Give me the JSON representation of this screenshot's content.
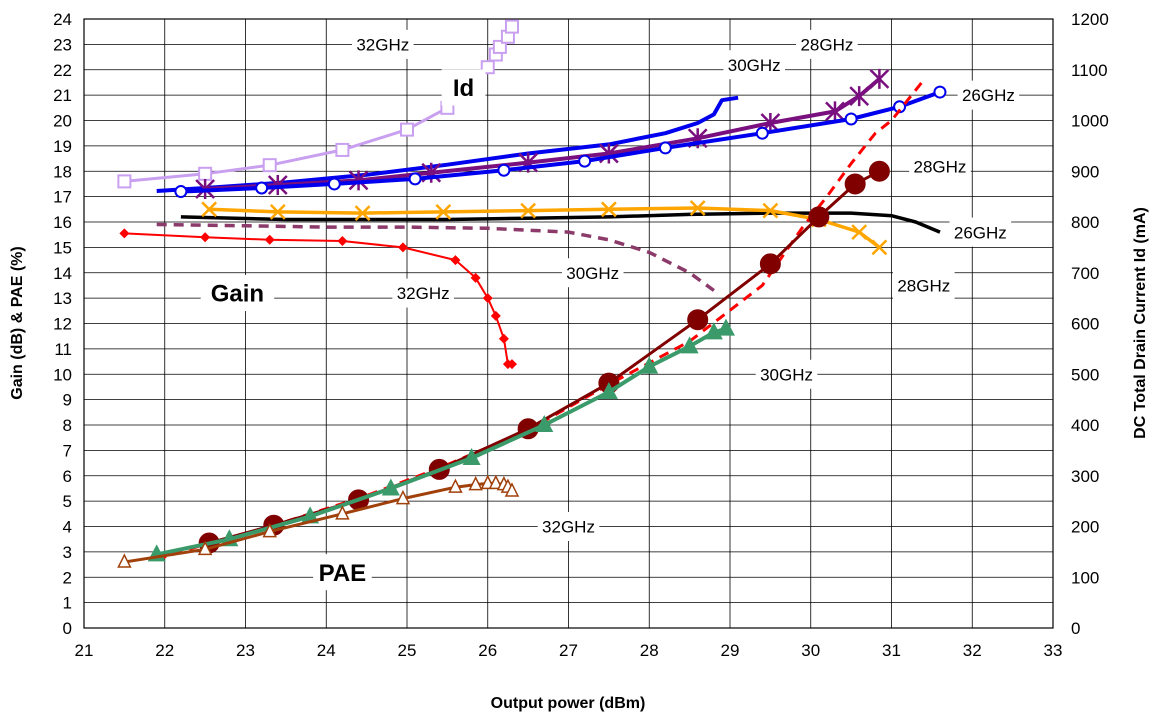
{
  "chart_data": {
    "type": "line",
    "xlabel": "Output power (dBm)",
    "ylabel": "Gain (dB) & PAE (%)",
    "y2label": "DC Total Drain Current Id (mA)",
    "xlim": [
      21,
      33
    ],
    "ylim": [
      0,
      24
    ],
    "y2lim": [
      0,
      1200
    ],
    "x_ticks": [
      21,
      22,
      23,
      24,
      25,
      26,
      27,
      28,
      29,
      30,
      31,
      32,
      33
    ],
    "y_ticks": [
      0,
      1,
      2,
      3,
      4,
      5,
      6,
      7,
      8,
      9,
      10,
      11,
      12,
      13,
      14,
      15,
      16,
      17,
      18,
      19,
      20,
      21,
      22,
      23,
      24
    ],
    "y2_ticks": [
      0,
      100,
      200,
      300,
      400,
      500,
      600,
      700,
      800,
      900,
      1000,
      1100,
      1200
    ],
    "grid": true,
    "annotations": [
      {
        "text": "32GHz",
        "x": 24.7,
        "y": 23.0
      },
      {
        "text": "Id",
        "x": 25.7,
        "y": 21.3,
        "bold": true
      },
      {
        "text": "30GHz",
        "x": 29.3,
        "y": 22.2
      },
      {
        "text": "28GHz",
        "x": 30.2,
        "y": 23.0
      },
      {
        "text": "26GHz",
        "x": 32.2,
        "y": 21.0
      },
      {
        "text": "28GHz",
        "x": 31.6,
        "y": 18.2
      },
      {
        "text": "Gain",
        "x": 22.9,
        "y": 13.2,
        "bold": true
      },
      {
        "text": "32GHz",
        "x": 25.2,
        "y": 13.2
      },
      {
        "text": "30GHz",
        "x": 27.3,
        "y": 14.0
      },
      {
        "text": "26GHz",
        "x": 32.1,
        "y": 15.6
      },
      {
        "text": "28GHz",
        "x": 31.4,
        "y": 13.5
      },
      {
        "text": "30GHz",
        "x": 29.7,
        "y": 10.0
      },
      {
        "text": "32GHz",
        "x": 27.0,
        "y": 4.0
      },
      {
        "text": "PAE",
        "x": 24.2,
        "y": 2.2,
        "bold": true
      }
    ],
    "series": [
      {
        "group": "Id",
        "axis": "right",
        "color": "#c9a0f0",
        "width": 3,
        "marker": "square-open",
        "x": [
          21.5,
          22.5,
          23.3,
          24.2,
          25.0,
          25.5,
          25.8,
          26.0,
          26.1,
          26.15,
          26.25,
          26.3
        ],
        "y": [
          880,
          895,
          912,
          942,
          982,
          1025,
          1065,
          1105,
          1130,
          1145,
          1165,
          1185
        ]
      },
      {
        "group": "Id",
        "axis": "right",
        "color": "#0000ee",
        "width": 4,
        "marker": "none",
        "x": [
          21.9,
          22.5,
          23.5,
          24.5,
          25.5,
          26.5,
          27.5,
          28.2,
          28.6,
          28.8,
          28.9,
          29.1
        ],
        "y": [
          861,
          867,
          878,
          893,
          913,
          935,
          953,
          975,
          995,
          1012,
          1040,
          1045
        ]
      },
      {
        "group": "Id",
        "axis": "right",
        "color": "#7a1080",
        "width": 4,
        "marker": "star",
        "x": [
          22.5,
          23.4,
          24.4,
          25.3,
          26.5,
          27.5,
          28.6,
          29.5,
          30.3,
          30.6,
          30.85
        ],
        "y": [
          865,
          873,
          882,
          897,
          917,
          935,
          965,
          995,
          1018,
          1048,
          1082
        ]
      },
      {
        "group": "Id",
        "axis": "right",
        "color": "#0000ee",
        "width": 4,
        "marker": "circle-open",
        "x": [
          22.2,
          23.2,
          24.1,
          25.1,
          26.2,
          27.2,
          28.2,
          29.4,
          30.5,
          31.1,
          31.6
        ],
        "y": [
          860,
          867,
          875,
          885,
          902,
          920,
          946,
          975,
          1003,
          1027,
          1056
        ]
      },
      {
        "group": "Gain",
        "axis": "left",
        "color": "#000000",
        "width": 3.5,
        "marker": "none",
        "x": [
          22.2,
          23.5,
          24.5,
          25.5,
          26.5,
          27.5,
          28.5,
          29.5,
          30.5,
          31.0,
          31.3,
          31.6
        ],
        "y": [
          16.2,
          16.1,
          16.1,
          16.1,
          16.15,
          16.2,
          16.3,
          16.35,
          16.35,
          16.25,
          16.0,
          15.6
        ]
      },
      {
        "group": "Gain",
        "axis": "left",
        "color": "#ffa500",
        "width": 3.5,
        "marker": "x",
        "x": [
          22.55,
          23.4,
          24.45,
          25.45,
          26.5,
          27.5,
          28.6,
          29.5,
          30.1,
          30.6,
          30.85
        ],
        "y": [
          16.5,
          16.4,
          16.35,
          16.4,
          16.45,
          16.5,
          16.55,
          16.45,
          16.1,
          15.6,
          15.0
        ]
      },
      {
        "group": "Gain",
        "axis": "left",
        "color": "#8b3a6a",
        "width": 3.5,
        "marker": "none",
        "dashed": true,
        "x": [
          21.9,
          23.0,
          24.0,
          25.0,
          26.0,
          27.0,
          27.5,
          28.0,
          28.5,
          28.8
        ],
        "y": [
          15.9,
          15.85,
          15.8,
          15.8,
          15.75,
          15.6,
          15.3,
          14.8,
          14.0,
          13.3
        ]
      },
      {
        "group": "Gain",
        "axis": "left",
        "color": "#ff0000",
        "width": 2,
        "marker": "diamond",
        "x": [
          21.5,
          22.5,
          23.3,
          24.2,
          24.95,
          25.6,
          25.85,
          26.0,
          26.1,
          26.2,
          26.25,
          26.3
        ],
        "y": [
          15.55,
          15.4,
          15.3,
          15.25,
          15.0,
          14.5,
          13.8,
          13.0,
          12.3,
          11.4,
          10.4,
          10.4
        ]
      },
      {
        "group": "PAE",
        "axis": "left",
        "color": "#ff0000",
        "width": 3,
        "marker": "none",
        "dashed": true,
        "x": [
          21.9,
          22.5,
          23.3,
          24.4,
          25.4,
          26.5,
          27.5,
          28.5,
          29.4,
          29.9,
          30.2,
          30.5,
          30.8,
          31.0,
          31.2,
          31.4
        ],
        "y": [
          2.7,
          3.3,
          4.0,
          5.1,
          6.3,
          7.8,
          9.6,
          11.3,
          13.5,
          15.8,
          17.0,
          18.3,
          19.5,
          20.0,
          20.8,
          21.6
        ]
      },
      {
        "group": "PAE",
        "axis": "left",
        "color": "#800000",
        "width": 3,
        "marker": "dot",
        "x": [
          22.55,
          23.35,
          24.4,
          25.4,
          26.5,
          27.5,
          28.6,
          29.5,
          30.1,
          30.55,
          30.85
        ],
        "y": [
          3.35,
          4.05,
          5.05,
          6.25,
          7.85,
          9.65,
          12.15,
          14.35,
          16.2,
          17.5,
          18.0
        ]
      },
      {
        "group": "PAE",
        "axis": "left",
        "color": "#3a9a6a",
        "width": 4,
        "marker": "triangle",
        "x": [
          21.9,
          22.8,
          23.8,
          24.8,
          25.8,
          26.7,
          27.5,
          28.0,
          28.5,
          28.8,
          28.95
        ],
        "y": [
          2.9,
          3.5,
          4.4,
          5.5,
          6.7,
          8.0,
          9.3,
          10.3,
          11.1,
          11.65,
          11.8
        ]
      },
      {
        "group": "PAE",
        "axis": "left",
        "color": "#a0400a",
        "width": 3,
        "marker": "triangle-open",
        "x": [
          21.5,
          22.5,
          23.3,
          24.2,
          24.95,
          25.6,
          25.85,
          26.0,
          26.1,
          26.2,
          26.25,
          26.3
        ],
        "y": [
          2.6,
          3.1,
          3.8,
          4.5,
          5.1,
          5.55,
          5.65,
          5.7,
          5.7,
          5.65,
          5.55,
          5.4
        ]
      }
    ]
  }
}
